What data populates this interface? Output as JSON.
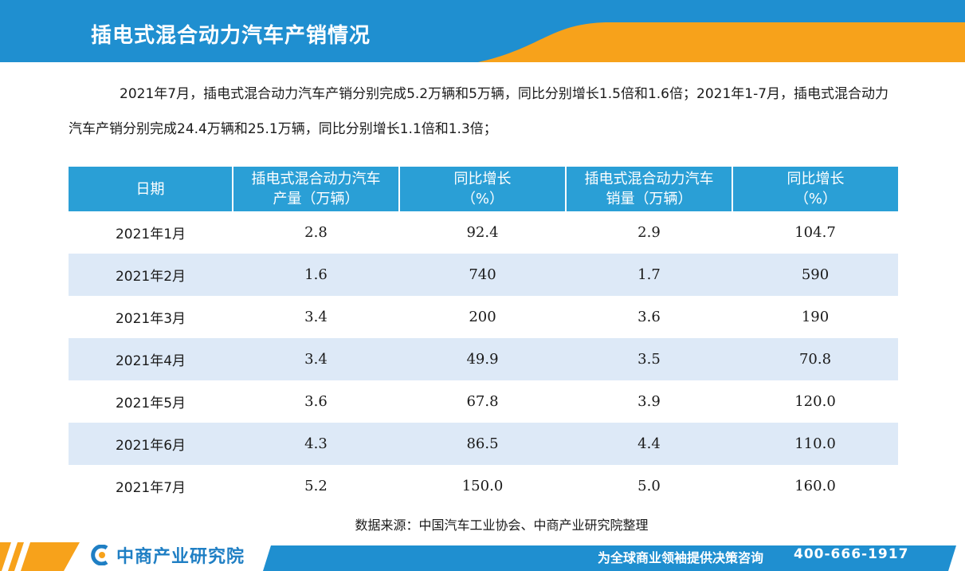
{
  "header": {
    "title": "插电式混合动力汽车产销情况"
  },
  "intro": {
    "text": "2021年7月，插电式混合动力汽车产销分别完成5.2万辆和5万辆，同比分别增长1.5倍和1.6倍；2021年1-7月，插电式混合动力汽车产销分别完成24.4万辆和25.1万辆，同比分别增长1.1倍和1.3倍；"
  },
  "table": {
    "headers": [
      {
        "line1": "日期",
        "line2": ""
      },
      {
        "line1": "插电式混合动力汽车",
        "line2": "产量（万辆）"
      },
      {
        "line1": "同比增长",
        "line2": "（%）"
      },
      {
        "line1": "插电式混合动力汽车",
        "line2": "销量（万辆）"
      },
      {
        "line1": "同比增长",
        "line2": "（%）"
      }
    ],
    "rows": [
      [
        "2021年1月",
        "2.8",
        "92.4",
        "2.9",
        "104.7"
      ],
      [
        "2021年2月",
        "1.6",
        "740",
        "1.7",
        "590"
      ],
      [
        "2021年3月",
        "3.4",
        "200",
        "3.6",
        "190"
      ],
      [
        "2021年4月",
        "3.4",
        "49.9",
        "3.5",
        "70.8"
      ],
      [
        "2021年5月",
        "3.6",
        "67.8",
        "3.9",
        "120.0"
      ],
      [
        "2021年6月",
        "4.3",
        "86.5",
        "4.4",
        "110.0"
      ],
      [
        "2021年7月",
        "5.2",
        "150.0",
        "5.0",
        "160.0"
      ]
    ]
  },
  "source": {
    "text": "数据来源：中国汽车工业协会、中商产业研究院整理"
  },
  "footer": {
    "logo_text": "中商产业研究院",
    "slogan": "为全球商业领袖提供决策咨询",
    "phone": "400-666-1917"
  },
  "colors": {
    "header_blue": "#1f8fd0",
    "accent_orange": "#f7a21b",
    "table_header": "#2a9fd6",
    "row_stripe": "#dde9f7"
  }
}
